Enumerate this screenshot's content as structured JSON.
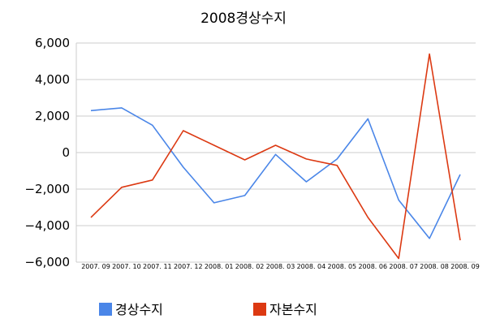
{
  "chart_data": {
    "type": "line",
    "title": "2008경상수지",
    "xlabel": "",
    "ylabel": "",
    "x": [
      "2007. 09",
      "2007. 10",
      "2007. 11",
      "2007. 12",
      "2008. 01",
      "2008. 02",
      "2008. 03",
      "2008. 04",
      "2008. 05",
      "2008. 06",
      "2008. 07",
      "2008. 08",
      "2008. 09"
    ],
    "ylim": [
      -6000,
      6000
    ],
    "yticks": [
      6000,
      4000,
      2000,
      0,
      -2000,
      -4000,
      -6000
    ],
    "ytick_labels": [
      "6,000",
      "4,000",
      "2,000",
      "0",
      "−2,000",
      "−4,000",
      "−6,000"
    ],
    "grid": true,
    "legend_position": "bottom",
    "series": [
      {
        "name": "경상수지",
        "color": "#4a86e8",
        "values": [
          2300,
          2450,
          1500,
          -800,
          -2750,
          -2350,
          -100,
          -1600,
          -350,
          1850,
          -2600,
          -4700,
          -1200
        ]
      },
      {
        "name": "자본수지",
        "color": "#dc3912",
        "values": [
          -3550,
          -1900,
          -1500,
          1200,
          400,
          -400,
          400,
          -350,
          -700,
          -3550,
          -5800,
          5400,
          -4800
        ]
      }
    ]
  }
}
